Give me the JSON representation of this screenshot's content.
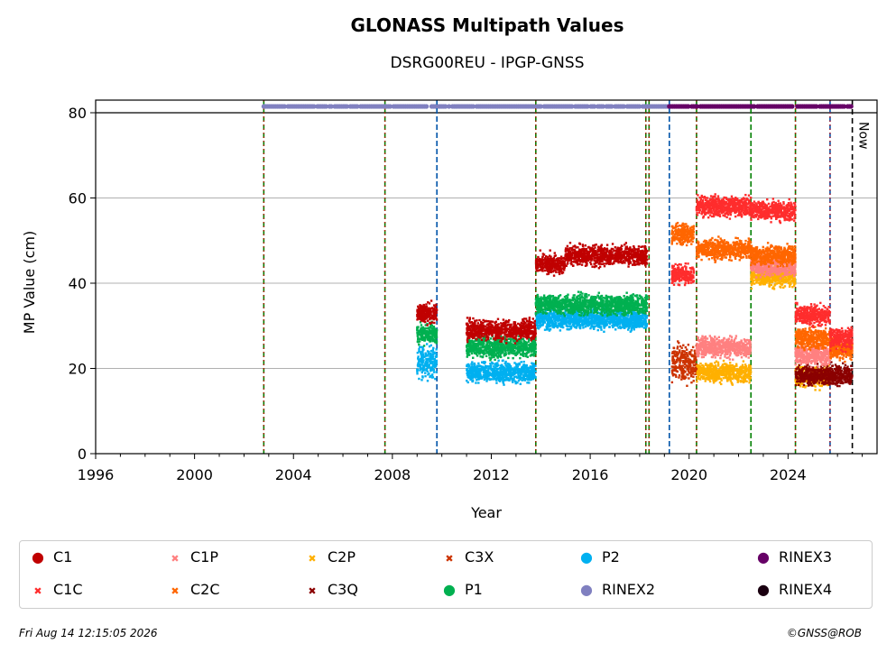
{
  "chart_data": {
    "type": "scatter",
    "title": "GLONASS Multipath Values",
    "subtitle": "DSRG00REU - IPGP-GNSS",
    "xlabel": "Year",
    "ylabel": "MP Value (cm)",
    "xlim": [
      1996,
      2027.6
    ],
    "ylim": [
      0,
      80
    ],
    "x_ticks": [
      "1996",
      "2000",
      "2004",
      "2008",
      "2012",
      "2016",
      "2020",
      "2024"
    ],
    "y_ticks": [
      "0",
      "20",
      "40",
      "60",
      "80"
    ],
    "grid": "horizontal",
    "now_label": "Now",
    "now_year": 2026.6,
    "event_lines": [
      {
        "year": 2002.8,
        "style": "green-red"
      },
      {
        "year": 2007.7,
        "style": "green-red"
      },
      {
        "year": 2009.8,
        "style": "blue"
      },
      {
        "year": 2013.8,
        "style": "green-red"
      },
      {
        "year": 2018.25,
        "style": "green-red"
      },
      {
        "year": 2018.38,
        "style": "green-red"
      },
      {
        "year": 2019.2,
        "style": "blue"
      },
      {
        "year": 2020.3,
        "style": "green-red"
      },
      {
        "year": 2022.5,
        "style": "green"
      },
      {
        "year": 2024.3,
        "style": "green-red"
      },
      {
        "year": 2025.7,
        "style": "blue-red"
      },
      {
        "year": 2026.6,
        "style": "now"
      }
    ],
    "rinex_bars": [
      {
        "name": "RINEX2",
        "start": 2002.8,
        "end": 2019.2
      },
      {
        "name": "RINEX3",
        "start": 2019.2,
        "end": 2026.6
      }
    ],
    "series": [
      {
        "name": "C1",
        "segments": [
          [
            2009.0,
            2009.8,
            33
          ],
          [
            2011.0,
            2013.8,
            29
          ],
          [
            2013.8,
            2015.0,
            44.5
          ],
          [
            2015.0,
            2018.3,
            46.5
          ]
        ]
      },
      {
        "name": "C1C",
        "segments": [
          [
            2019.3,
            2020.2,
            42
          ],
          [
            2020.3,
            2022.5,
            58
          ],
          [
            2022.5,
            2024.3,
            57
          ],
          [
            2024.3,
            2025.7,
            32.5
          ],
          [
            2025.7,
            2026.6,
            27
          ]
        ]
      },
      {
        "name": "C1P",
        "segments": [
          [
            2020.3,
            2022.5,
            25
          ],
          [
            2022.5,
            2024.3,
            44
          ],
          [
            2024.3,
            2025.7,
            23
          ]
        ]
      },
      {
        "name": "C2C",
        "segments": [
          [
            2019.3,
            2020.2,
            51.5
          ],
          [
            2020.3,
            2022.5,
            48
          ],
          [
            2022.5,
            2024.3,
            46.5
          ],
          [
            2024.3,
            2025.7,
            27
          ],
          [
            2025.7,
            2026.6,
            24.5
          ]
        ]
      },
      {
        "name": "C2P",
        "segments": [
          [
            2020.3,
            2022.5,
            19
          ],
          [
            2022.5,
            2024.3,
            41.5
          ],
          [
            2024.3,
            2025.7,
            18
          ]
        ]
      },
      {
        "name": "C3X",
        "segments": [
          [
            2019.3,
            2020.3,
            21.5
          ]
        ]
      },
      {
        "name": "C3Q",
        "segments": [
          [
            2024.3,
            2025.7,
            18.5
          ],
          [
            2025.7,
            2026.6,
            18.5
          ]
        ]
      },
      {
        "name": "P1",
        "segments": [
          [
            2009.0,
            2009.8,
            28
          ],
          [
            2011.0,
            2013.8,
            25
          ],
          [
            2013.8,
            2018.3,
            35
          ]
        ]
      },
      {
        "name": "P2",
        "segments": [
          [
            2009.0,
            2009.8,
            21.5
          ],
          [
            2011.0,
            2013.8,
            19
          ],
          [
            2013.8,
            2018.3,
            31.5
          ]
        ]
      }
    ],
    "legend_placement": "bottom",
    "legend": [
      {
        "name": "C1",
        "marker": "●",
        "color": "#c00000"
      },
      {
        "name": "C1C",
        "marker": "✖",
        "color": "#ff2d2d"
      },
      {
        "name": "C1P",
        "marker": "✖",
        "color": "#ff8080"
      },
      {
        "name": "C2C",
        "marker": "✖",
        "color": "#ff6600"
      },
      {
        "name": "C2P",
        "marker": "✖",
        "color": "#ffb000"
      },
      {
        "name": "P1",
        "marker": "●",
        "color": "#00b050"
      },
      {
        "name": "C3X",
        "marker": "✖",
        "color": "#cc3300"
      },
      {
        "name": "C3Q",
        "marker": "✖",
        "color": "#8b0000"
      },
      {
        "name": "RINEX2",
        "marker": "●",
        "color": "#8080c0"
      },
      {
        "name": "P2",
        "marker": "●",
        "color": "#00b0f0"
      },
      {
        "name": "RINEX3",
        "marker": "●",
        "color": "#660066"
      },
      {
        "name": "RINEX4",
        "marker": "●",
        "color": "#1a0010"
      }
    ]
  },
  "footer": {
    "date": "Fri Aug 14 12:15:05 2026",
    "credit": "©GNSS@ROB"
  }
}
